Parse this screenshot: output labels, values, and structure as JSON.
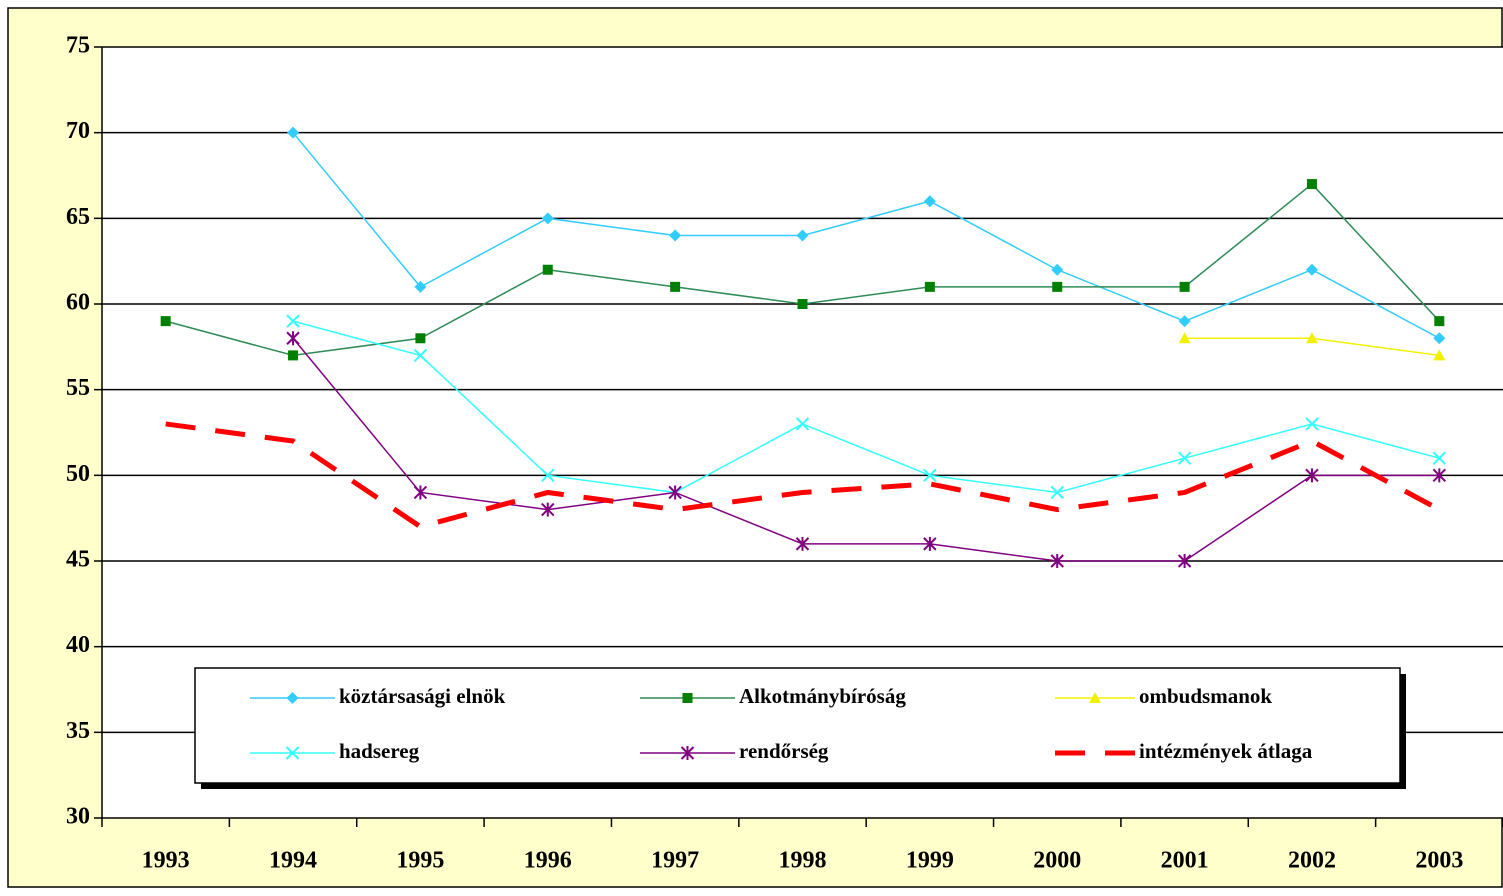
{
  "chart_data": {
    "type": "line",
    "categories": [
      "1993",
      "1994",
      "1995",
      "1996",
      "1997",
      "1998",
      "1999",
      "2000",
      "2001",
      "2002",
      "2003"
    ],
    "series": [
      {
        "name": "köztársasági elnök",
        "color": "#33CCFF",
        "marker": "diamond",
        "values": [
          null,
          70,
          61,
          65,
          64,
          64,
          66,
          62,
          59,
          62,
          58
        ]
      },
      {
        "name": "Alkotmánybíróság",
        "color": "#2E8B57",
        "marker": "square",
        "values": [
          59,
          57,
          58,
          62,
          61,
          60,
          61,
          61,
          61,
          67,
          59
        ]
      },
      {
        "name": "ombudsmanok",
        "color": "#F2F200",
        "marker": "triangle",
        "values": [
          null,
          null,
          null,
          null,
          null,
          null,
          null,
          null,
          58,
          58,
          57
        ]
      },
      {
        "name": "hadsereg",
        "color": "#33FFFF",
        "marker": "x",
        "values": [
          null,
          59,
          57,
          50,
          49,
          53,
          50,
          49,
          51,
          53,
          51
        ]
      },
      {
        "name": "rendőrség",
        "color": "#800080",
        "marker": "star",
        "values": [
          null,
          58,
          49,
          48,
          49,
          46,
          46,
          45,
          45,
          50,
          50
        ]
      },
      {
        "name": "intézmények átlaga",
        "color": "#FF0000",
        "marker": "none",
        "style": "dashed",
        "values": [
          53,
          52,
          47,
          49,
          48,
          49,
          49.5,
          48,
          49,
          52,
          48
        ]
      }
    ],
    "ylim": [
      30,
      75
    ],
    "yticks": [
      30,
      35,
      40,
      45,
      50,
      55,
      60,
      65,
      70,
      75
    ],
    "grid": true,
    "legend": "bottom"
  }
}
